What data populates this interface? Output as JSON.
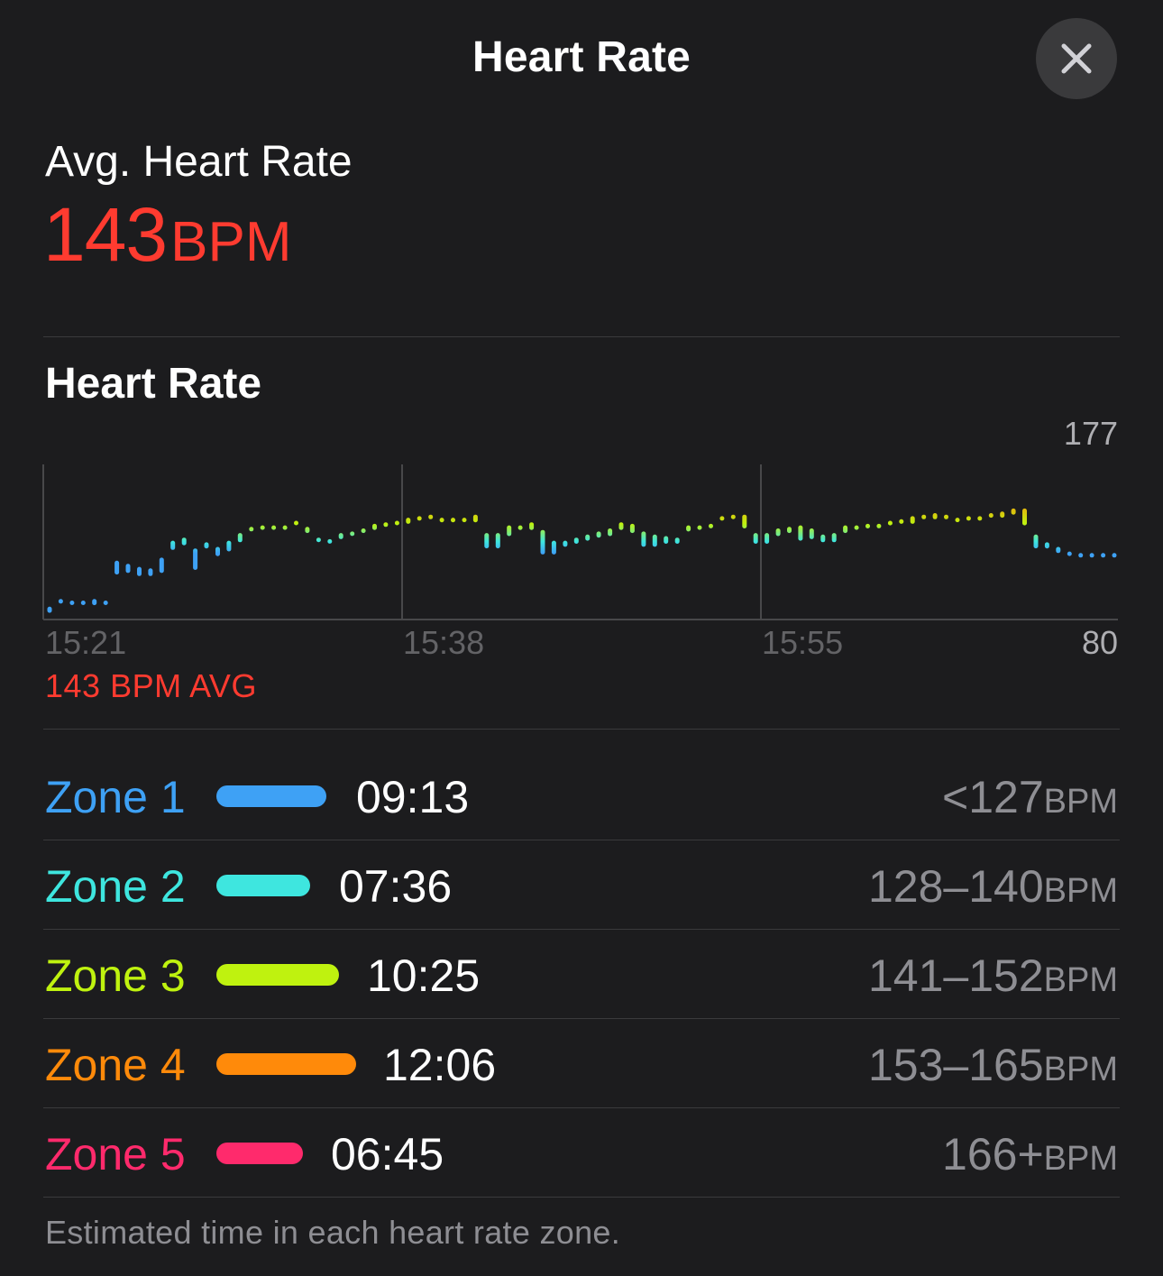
{
  "header": {
    "title": "Heart Rate",
    "close_icon": "close-icon"
  },
  "summary": {
    "label": "Avg. Heart Rate",
    "value": "143",
    "unit": "BPM",
    "color": "#ff3b30"
  },
  "chart_section": {
    "title": "Heart Rate",
    "avg_note": "143 BPM AVG"
  },
  "chart_data": {
    "type": "bar",
    "title": "Heart Rate",
    "y_max_label": "177",
    "y_min_label": "80",
    "ylim": [
      80,
      177
    ],
    "x_tick_labels": [
      "15:21",
      "15:38",
      "15:55"
    ],
    "range_bars": [
      [
        82,
        86
      ],
      [
        88,
        91
      ],
      [
        89,
        90
      ],
      [
        88,
        90
      ],
      [
        87,
        91
      ],
      [
        89,
        90
      ],
      [
        107,
        116
      ],
      [
        108,
        114
      ],
      [
        106,
        112
      ],
      [
        106,
        111
      ],
      [
        108,
        118
      ],
      [
        123,
        129
      ],
      [
        126,
        131
      ],
      [
        110,
        124
      ],
      [
        124,
        128
      ],
      [
        119,
        125
      ],
      [
        122,
        129
      ],
      [
        128,
        134
      ],
      [
        136,
        138
      ],
      [
        137,
        139
      ],
      [
        137,
        139
      ],
      [
        138,
        139
      ],
      [
        140,
        142
      ],
      [
        134,
        138
      ],
      [
        130,
        131
      ],
      [
        129,
        130
      ],
      [
        130,
        134
      ],
      [
        133,
        135
      ],
      [
        134,
        137
      ],
      [
        136,
        140
      ],
      [
        138,
        141
      ],
      [
        140,
        142
      ],
      [
        140,
        144
      ],
      [
        143,
        145
      ],
      [
        143,
        146
      ],
      [
        141,
        144
      ],
      [
        141,
        144
      ],
      [
        143,
        144
      ],
      [
        141,
        146
      ],
      [
        124,
        134
      ],
      [
        124,
        134
      ],
      [
        132,
        139
      ],
      [
        136,
        139
      ],
      [
        136,
        141
      ],
      [
        120,
        136
      ],
      [
        120,
        129
      ],
      [
        125,
        129
      ],
      [
        127,
        131
      ],
      [
        129,
        133
      ],
      [
        131,
        135
      ],
      [
        132,
        137
      ],
      [
        136,
        141
      ],
      [
        134,
        140
      ],
      [
        125,
        135
      ],
      [
        125,
        133
      ],
      [
        127,
        132
      ],
      [
        127,
        131
      ],
      [
        135,
        139
      ],
      [
        137,
        139
      ],
      [
        139,
        140
      ],
      [
        144,
        145
      ],
      [
        145,
        146
      ],
      [
        137,
        146
      ],
      [
        127,
        134
      ],
      [
        127,
        134
      ],
      [
        132,
        137
      ],
      [
        134,
        138
      ],
      [
        129,
        139
      ],
      [
        130,
        137
      ],
      [
        128,
        133
      ],
      [
        128,
        134
      ],
      [
        134,
        139
      ],
      [
        137,
        139
      ],
      [
        137,
        140
      ],
      [
        138,
        140
      ],
      [
        139,
        142
      ],
      [
        140,
        143
      ],
      [
        140,
        145
      ],
      [
        143,
        146
      ],
      [
        143,
        147
      ],
      [
        143,
        146
      ],
      [
        143,
        144
      ],
      [
        144,
        145
      ],
      [
        143,
        145
      ],
      [
        144,
        147
      ],
      [
        144,
        148
      ],
      [
        146,
        150
      ],
      [
        139,
        150
      ],
      [
        124,
        133
      ],
      [
        124,
        128
      ],
      [
        121,
        125
      ],
      [
        120,
        122
      ],
      [
        119,
        121
      ],
      [
        119,
        121
      ],
      [
        119,
        121
      ],
      [
        119,
        121
      ]
    ],
    "zone_colors": {
      "zone1": "#3ea1f5",
      "zone2": "#3ee6df",
      "zone3": "#bff20f",
      "zone4": "#ff8a0a",
      "zone5": "#ff2a6c"
    }
  },
  "zones": [
    {
      "name": "Zone 1",
      "time": "09:13",
      "range": "<127",
      "unit": "BPM",
      "color": "#3ea1f5"
    },
    {
      "name": "Zone 2",
      "time": "07:36",
      "range": "128–140",
      "unit": "BPM",
      "color": "#3ee6df"
    },
    {
      "name": "Zone 3",
      "time": "10:25",
      "range": "141–152",
      "unit": "BPM",
      "color": "#bff20f"
    },
    {
      "name": "Zone 4",
      "time": "12:06",
      "range": "153–165",
      "unit": "BPM",
      "color": "#ff8a0a"
    },
    {
      "name": "Zone 5",
      "time": "06:45",
      "range": "166+",
      "unit": "BPM",
      "color": "#ff2a6c"
    }
  ],
  "footnote": "Estimated time in each heart rate zone."
}
